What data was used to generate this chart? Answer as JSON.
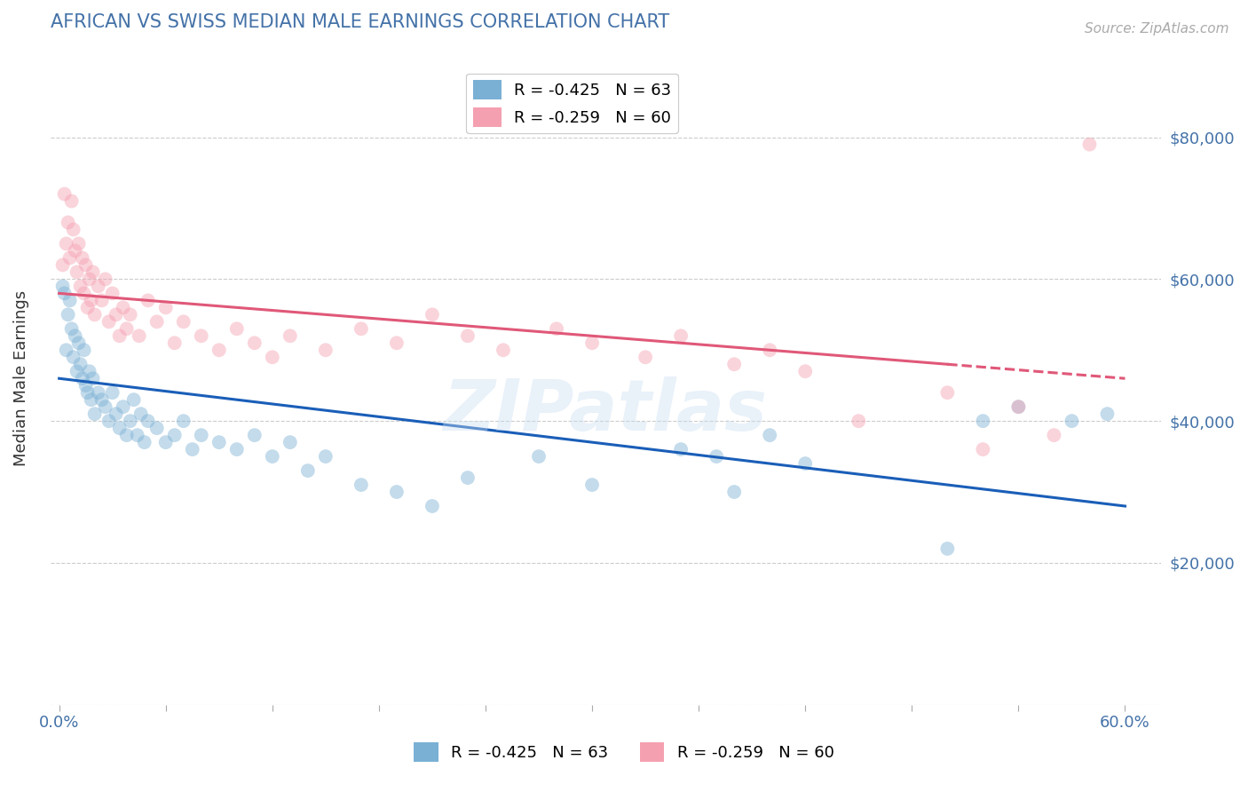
{
  "title": "AFRICAN VS SWISS MEDIAN MALE EARNINGS CORRELATION CHART",
  "title_color": "#4472a8",
  "source_text": "Source: ZipAtlas.com",
  "ylabel": "Median Male Earnings",
  "xlim": [
    -0.005,
    0.62
  ],
  "ylim": [
    0,
    92000
  ],
  "yticks": [
    0,
    20000,
    40000,
    60000,
    80000
  ],
  "ytick_labels": [
    "",
    "$20,000",
    "$40,000",
    "$60,000",
    "$80,000"
  ],
  "xticks": [
    0.0,
    0.06,
    0.12,
    0.18,
    0.24,
    0.3,
    0.36,
    0.42,
    0.48,
    0.54,
    0.6
  ],
  "xtick_labels": [
    "0.0%",
    "",
    "",
    "",
    "",
    "",
    "",
    "",
    "",
    "",
    "60.0%"
  ],
  "african_color": "#7ab0d4",
  "swiss_color": "#f4a0b0",
  "african_line_color": "#1a5eb8",
  "swiss_line_color": "#e05878",
  "legend_african_label": "R = -0.425   N = 63",
  "legend_swiss_label": "R = -0.259   N = 60",
  "legend_african_color": "#7ab0d4",
  "legend_swiss_color": "#f4a0b0",
  "watermark": "ZIPatlas",
  "african_line_x": [
    0.0,
    0.6
  ],
  "african_line_y": [
    46000,
    28000
  ],
  "swiss_line_x": [
    0.0,
    0.6
  ],
  "swiss_line_y": [
    58000,
    46000
  ],
  "swiss_line_solid_end": 0.5,
  "background_color": "#ffffff",
  "grid_color": "#cccccc",
  "scatter_size": 130,
  "scatter_alpha": 0.45,
  "african_x": [
    0.002,
    0.003,
    0.004,
    0.005,
    0.006,
    0.007,
    0.008,
    0.009,
    0.01,
    0.011,
    0.012,
    0.013,
    0.014,
    0.015,
    0.016,
    0.017,
    0.018,
    0.019,
    0.02,
    0.022,
    0.024,
    0.026,
    0.028,
    0.03,
    0.032,
    0.034,
    0.036,
    0.038,
    0.04,
    0.042,
    0.044,
    0.046,
    0.048,
    0.05,
    0.055,
    0.06,
    0.065,
    0.07,
    0.075,
    0.08,
    0.09,
    0.1,
    0.11,
    0.12,
    0.13,
    0.14,
    0.15,
    0.17,
    0.19,
    0.21,
    0.23,
    0.27,
    0.3,
    0.35,
    0.37,
    0.38,
    0.4,
    0.42,
    0.5,
    0.52,
    0.54,
    0.57,
    0.59
  ],
  "african_y": [
    59000,
    58000,
    50000,
    55000,
    57000,
    53000,
    49000,
    52000,
    47000,
    51000,
    48000,
    46000,
    50000,
    45000,
    44000,
    47000,
    43000,
    46000,
    41000,
    44000,
    43000,
    42000,
    40000,
    44000,
    41000,
    39000,
    42000,
    38000,
    40000,
    43000,
    38000,
    41000,
    37000,
    40000,
    39000,
    37000,
    38000,
    40000,
    36000,
    38000,
    37000,
    36000,
    38000,
    35000,
    37000,
    33000,
    35000,
    31000,
    30000,
    28000,
    32000,
    35000,
    31000,
    36000,
    35000,
    30000,
    38000,
    34000,
    22000,
    40000,
    42000,
    40000,
    41000
  ],
  "swiss_x": [
    0.002,
    0.003,
    0.004,
    0.005,
    0.006,
    0.007,
    0.008,
    0.009,
    0.01,
    0.011,
    0.012,
    0.013,
    0.014,
    0.015,
    0.016,
    0.017,
    0.018,
    0.019,
    0.02,
    0.022,
    0.024,
    0.026,
    0.028,
    0.03,
    0.032,
    0.034,
    0.036,
    0.038,
    0.04,
    0.045,
    0.05,
    0.055,
    0.06,
    0.065,
    0.07,
    0.08,
    0.09,
    0.1,
    0.11,
    0.12,
    0.13,
    0.15,
    0.17,
    0.19,
    0.21,
    0.23,
    0.25,
    0.28,
    0.3,
    0.33,
    0.35,
    0.38,
    0.4,
    0.42,
    0.45,
    0.5,
    0.52,
    0.54,
    0.56,
    0.58
  ],
  "swiss_y": [
    62000,
    72000,
    65000,
    68000,
    63000,
    71000,
    67000,
    64000,
    61000,
    65000,
    59000,
    63000,
    58000,
    62000,
    56000,
    60000,
    57000,
    61000,
    55000,
    59000,
    57000,
    60000,
    54000,
    58000,
    55000,
    52000,
    56000,
    53000,
    55000,
    52000,
    57000,
    54000,
    56000,
    51000,
    54000,
    52000,
    50000,
    53000,
    51000,
    49000,
    52000,
    50000,
    53000,
    51000,
    55000,
    52000,
    50000,
    53000,
    51000,
    49000,
    52000,
    48000,
    50000,
    47000,
    40000,
    44000,
    36000,
    42000,
    38000,
    79000
  ]
}
